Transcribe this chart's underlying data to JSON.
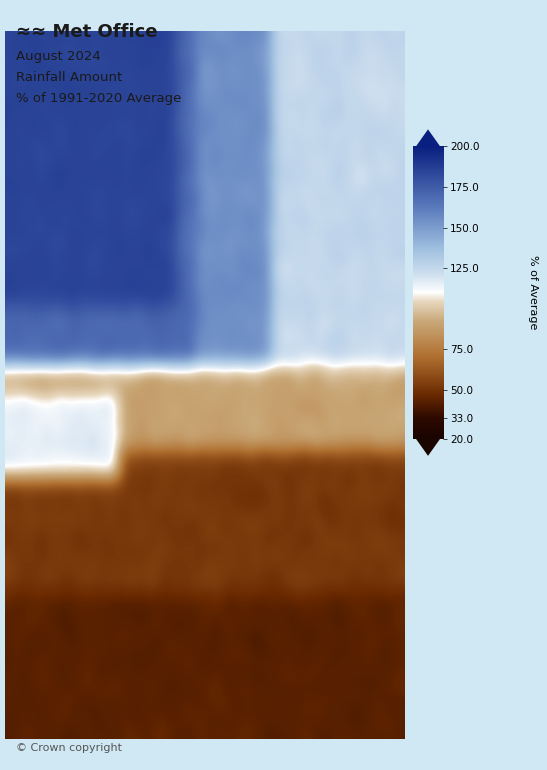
{
  "title_lines": [
    "August 2024",
    "Rainfall Amount",
    "% of 1991-2020 Average"
  ],
  "logo_text": "Met Office",
  "copyright_text": "© Crown copyright",
  "colorbar_ticks": [
    200.0,
    175.0,
    150.0,
    125.0,
    75.0,
    50.0,
    33.0,
    20.0
  ],
  "colorbar_label": "% of Average",
  "background_color": "#D0E8F4",
  "figure_bg": "#D0E8F4",
  "text_color": "#1A1A1A",
  "figsize": [
    5.47,
    7.7
  ],
  "dpi": 100,
  "vmin": 20,
  "vmax": 200,
  "cmap_nodes": [
    [
      0.0,
      "#1A0500"
    ],
    [
      0.07,
      "#2D0A00"
    ],
    [
      0.15,
      "#6B2A00"
    ],
    [
      0.28,
      "#B07030"
    ],
    [
      0.4,
      "#C9A878"
    ],
    [
      0.47,
      "#E8D8C0"
    ],
    [
      0.5,
      "#FFFFFF"
    ],
    [
      0.56,
      "#D0E0F0"
    ],
    [
      0.65,
      "#A0C0E0"
    ],
    [
      0.78,
      "#6080C0"
    ],
    [
      1.0,
      "#0A2080"
    ]
  ],
  "rainfall_seed": 42,
  "map_lon_min": -8.5,
  "map_lon_max": 2.0,
  "map_lat_min": 49.5,
  "map_lat_max": 61.8
}
